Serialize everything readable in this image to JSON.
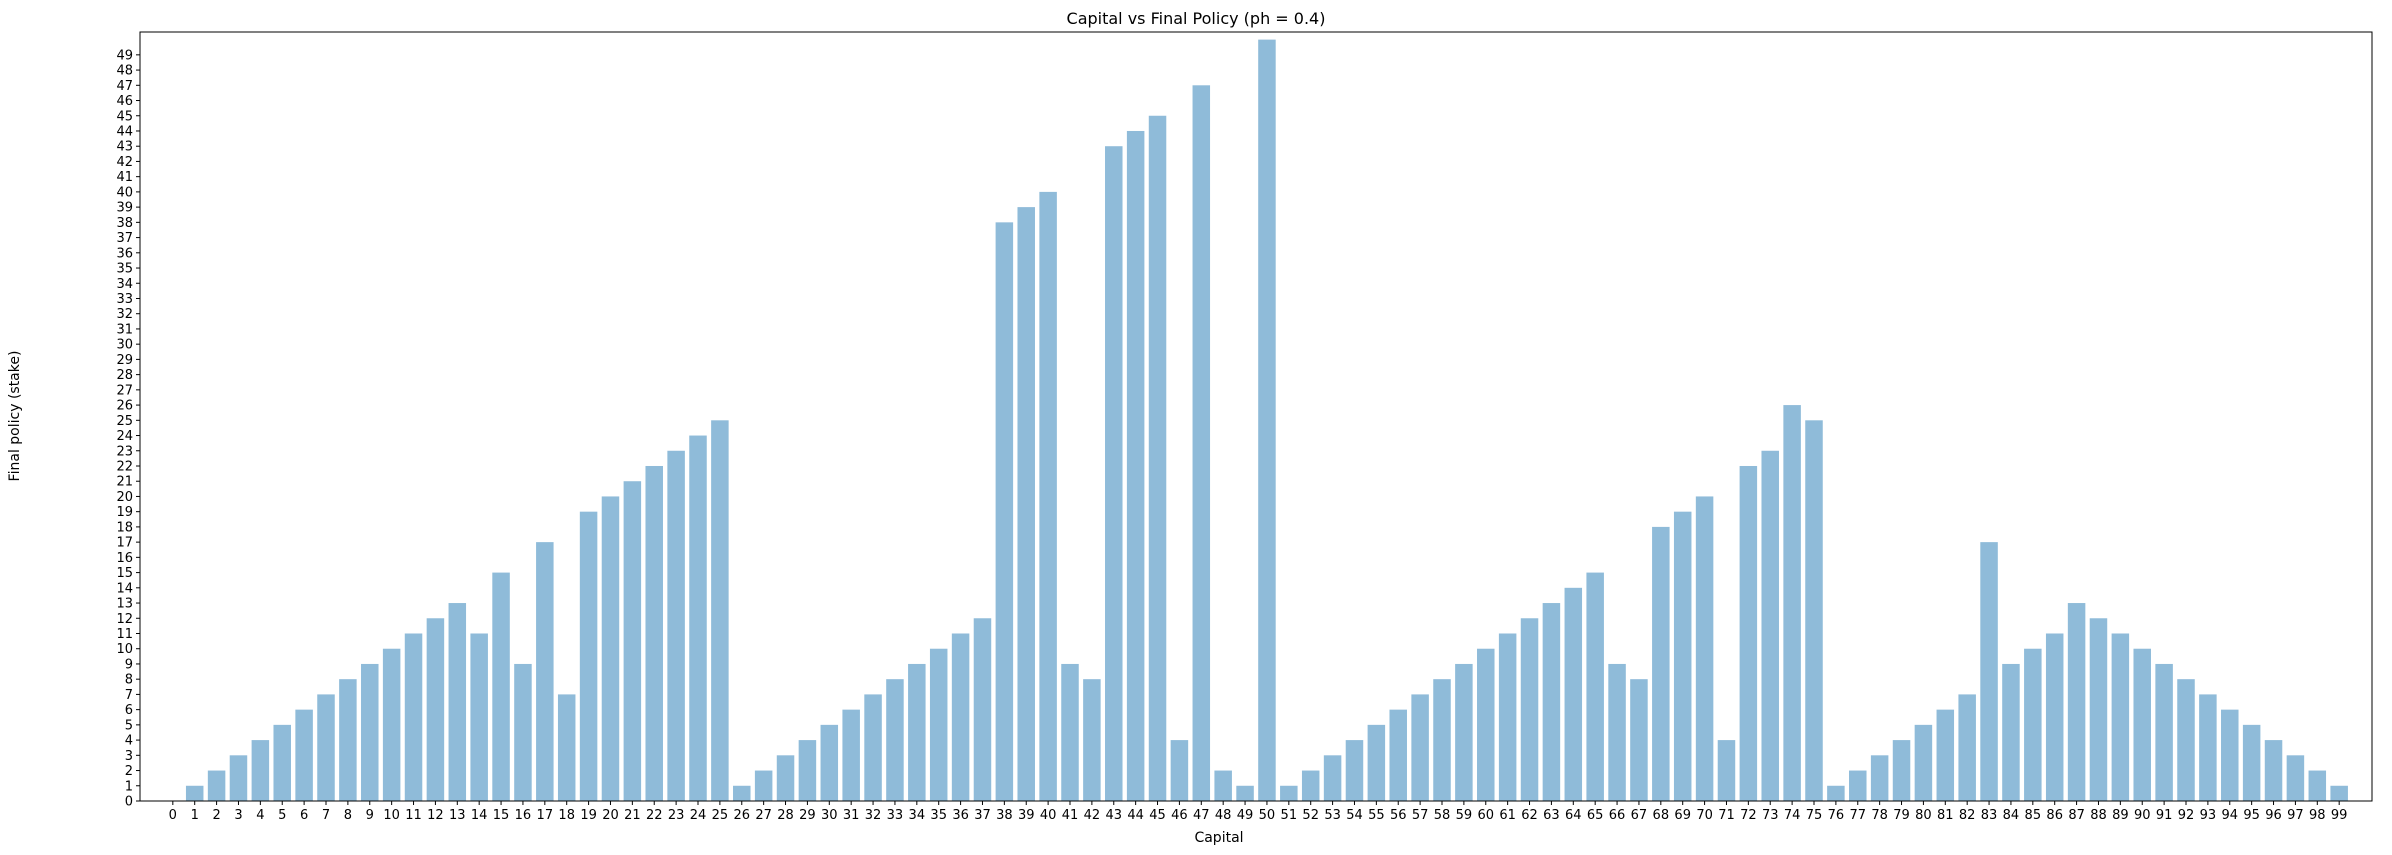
{
  "chart_data": {
    "type": "bar",
    "title": "Capital vs Final Policy (ph = 0.4)",
    "xlabel": "Capital",
    "ylabel": "Final policy (stake)",
    "categories": [
      "0",
      "1",
      "2",
      "3",
      "4",
      "5",
      "6",
      "7",
      "8",
      "9",
      "10",
      "11",
      "12",
      "13",
      "14",
      "15",
      "16",
      "17",
      "18",
      "19",
      "20",
      "21",
      "22",
      "23",
      "24",
      "25",
      "26",
      "27",
      "28",
      "29",
      "30",
      "31",
      "32",
      "33",
      "34",
      "35",
      "36",
      "37",
      "38",
      "39",
      "40",
      "41",
      "42",
      "43",
      "44",
      "45",
      "46",
      "47",
      "48",
      "49",
      "50",
      "51",
      "52",
      "53",
      "54",
      "55",
      "56",
      "57",
      "58",
      "59",
      "60",
      "61",
      "62",
      "63",
      "64",
      "65",
      "66",
      "67",
      "68",
      "69",
      "70",
      "71",
      "72",
      "73",
      "74",
      "75",
      "76",
      "77",
      "78",
      "79",
      "80",
      "81",
      "82",
      "83",
      "84",
      "85",
      "86",
      "87",
      "88",
      "89",
      "90",
      "91",
      "92",
      "93",
      "94",
      "95",
      "96",
      "97",
      "98",
      "99"
    ],
    "values": [
      0,
      1,
      2,
      3,
      4,
      5,
      6,
      7,
      8,
      9,
      10,
      11,
      12,
      13,
      11,
      15,
      9,
      17,
      7,
      19,
      20,
      21,
      22,
      23,
      24,
      25,
      1,
      2,
      3,
      4,
      5,
      6,
      7,
      8,
      9,
      10,
      11,
      12,
      38,
      39,
      40,
      9,
      8,
      43,
      44,
      45,
      4,
      47,
      2,
      1,
      50,
      1,
      2,
      3,
      4,
      5,
      6,
      7,
      8,
      9,
      10,
      11,
      12,
      13,
      14,
      15,
      9,
      8,
      18,
      19,
      20,
      4,
      22,
      23,
      26,
      25,
      1,
      2,
      3,
      4,
      5,
      6,
      7,
      17,
      9,
      10,
      11,
      13,
      12,
      11,
      10,
      9,
      8,
      7,
      6,
      5,
      4,
      3,
      2,
      1
    ],
    "yticks": [
      0,
      1,
      2,
      3,
      4,
      5,
      6,
      7,
      8,
      9,
      10,
      11,
      12,
      13,
      14,
      15,
      16,
      17,
      18,
      19,
      20,
      21,
      22,
      23,
      24,
      25,
      26,
      27,
      28,
      29,
      30,
      31,
      32,
      33,
      34,
      35,
      36,
      37,
      38,
      39,
      40,
      41,
      42,
      43,
      44,
      45,
      46,
      47,
      48,
      49
    ],
    "ylim": [
      0,
      50.5
    ],
    "bar_color": "#1f77b4",
    "bar_opacity": 0.5,
    "grid": false,
    "legend": "none"
  }
}
